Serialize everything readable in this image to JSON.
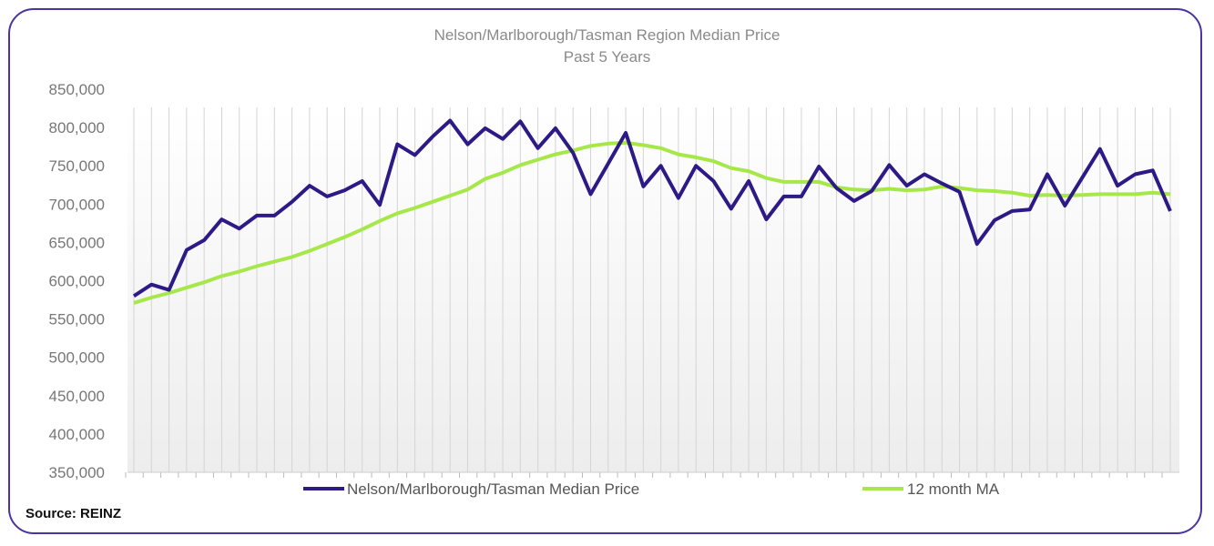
{
  "chart_data": {
    "type": "line",
    "title": "Nelson/Marlborough/Tasman  Region Median Price",
    "subtitle": "Past 5 Years",
    "xlabel": "",
    "ylabel": "",
    "ylim": [
      350000,
      850000
    ],
    "yticks": [
      "850,000",
      "800,000",
      "750,000",
      "700,000",
      "650,000",
      "600,000",
      "550,000",
      "500,000",
      "450,000",
      "400,000",
      "350,000"
    ],
    "ytick_values": [
      850000,
      800000,
      750000,
      700000,
      650000,
      600000,
      550000,
      500000,
      450000,
      400000,
      350000
    ],
    "grid": "vertical",
    "legend_position": "bottom",
    "series": [
      {
        "name": "Nelson/Marlborough/Tasman Median Price",
        "color": "#2e1a87",
        "values": [
          580000,
          595000,
          588000,
          640000,
          653000,
          680000,
          668000,
          685000,
          685000,
          703000,
          724000,
          710000,
          718000,
          730000,
          699000,
          778000,
          764000,
          788000,
          809000,
          778000,
          799000,
          785000,
          808000,
          773000,
          799000,
          767000,
          713000,
          753000,
          793000,
          723000,
          750000,
          708000,
          750000,
          730000,
          694000,
          730000,
          680000,
          710000,
          710000,
          749000,
          721000,
          704000,
          717000,
          751000,
          724000,
          739000,
          727000,
          716000,
          648000,
          679000,
          691000,
          693000,
          739000,
          698000,
          735000,
          772000,
          724000,
          739000,
          744000,
          691000
        ]
      },
      {
        "name": "12 month MA",
        "color": "#a6e84a",
        "values": [
          571000,
          578000,
          584000,
          591000,
          598000,
          606000,
          612000,
          619000,
          625000,
          631000,
          639000,
          648000,
          657000,
          667000,
          678000,
          688000,
          695000,
          703000,
          711000,
          719000,
          733000,
          741000,
          751000,
          758000,
          765000,
          770000,
          776000,
          779000,
          780000,
          777000,
          773000,
          765000,
          761000,
          756000,
          747000,
          743000,
          734000,
          729000,
          729000,
          729000,
          722000,
          719000,
          718000,
          720000,
          718000,
          719000,
          723000,
          721000,
          718000,
          717000,
          715000,
          711000,
          712000,
          711000,
          712000,
          713000,
          713000,
          713000,
          715000,
          713000
        ]
      }
    ]
  },
  "source": "Source: REINZ"
}
